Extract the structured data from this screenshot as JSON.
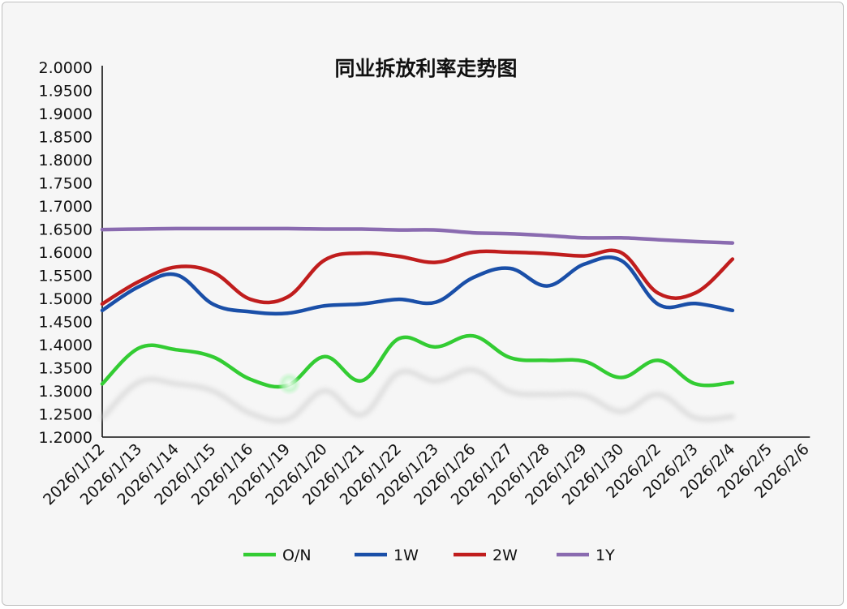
{
  "chart_data": {
    "type": "line",
    "title": "同业拆放利率走势图",
    "xlabel": "",
    "ylabel": "",
    "ylim": [
      1.2,
      2.0
    ],
    "ytick_step": 0.05,
    "ytick_labels": [
      "1.2000",
      "1.2500",
      "1.3000",
      "1.3500",
      "1.4000",
      "1.4500",
      "1.5000",
      "1.5500",
      "1.6000",
      "1.6500",
      "1.7000",
      "1.7500",
      "1.8000",
      "1.8500",
      "1.9000",
      "1.9500",
      "2.0000"
    ],
    "categories": [
      "2026/1/12",
      "2026/1/13",
      "2026/1/14",
      "2026/1/15",
      "2026/1/16",
      "2026/1/19",
      "2026/1/20",
      "2026/1/21",
      "2026/1/22",
      "2026/1/23",
      "2026/1/26",
      "2026/1/27",
      "2026/1/28",
      "2026/1/29",
      "2026/1/30",
      "2026/2/2",
      "2026/2/3",
      "2026/2/4",
      "2026/2/5",
      "2026/2/6"
    ],
    "grid": false,
    "legend_position": "bottom",
    "series": [
      {
        "name": "O/N",
        "color": "#33cc33",
        "values": [
          1.315,
          1.393,
          1.389,
          1.373,
          1.325,
          1.312,
          1.374,
          1.322,
          1.413,
          1.395,
          1.419,
          1.372,
          1.366,
          1.364,
          1.329,
          1.366,
          1.315,
          1.318,
          null,
          null
        ]
      },
      {
        "name": "1W",
        "color": "#1a4fa8",
        "values": [
          1.474,
          1.526,
          1.551,
          1.487,
          1.471,
          1.468,
          1.484,
          1.488,
          1.498,
          1.492,
          1.545,
          1.565,
          1.527,
          1.574,
          1.582,
          1.487,
          1.489,
          1.474,
          null,
          null
        ]
      },
      {
        "name": "2W",
        "color": "#c01d1d",
        "values": [
          1.488,
          1.537,
          1.568,
          1.556,
          1.498,
          1.503,
          1.583,
          1.598,
          1.591,
          1.578,
          1.6,
          1.6,
          1.597,
          1.592,
          1.599,
          1.511,
          1.512,
          1.585,
          null,
          null
        ]
      },
      {
        "name": "1Y",
        "color": "#8a6bb0",
        "values": [
          1.649,
          1.65,
          1.651,
          1.651,
          1.651,
          1.651,
          1.65,
          1.65,
          1.648,
          1.648,
          1.642,
          1.64,
          1.636,
          1.631,
          1.631,
          1.627,
          1.623,
          1.62,
          null,
          null
        ]
      }
    ]
  }
}
